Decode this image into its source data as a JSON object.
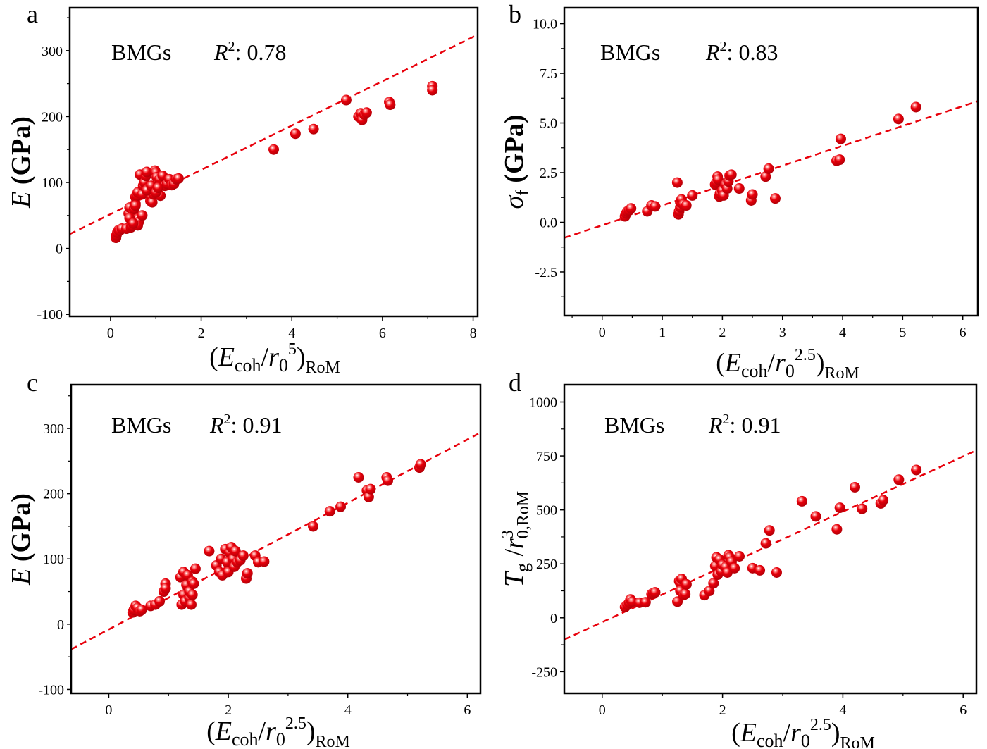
{
  "figure": {
    "marker_color": "#e8000b",
    "fit_line_color": "#e8000b"
  },
  "chart_data": [
    {
      "id": "a",
      "type": "scatter",
      "panel_letter": "a",
      "title": "",
      "annotation_group": "BMGs",
      "annotation_r2_label": "R",
      "annotation_r2_sup": "2",
      "annotation_r2_value": ": 0.78",
      "xlabel": {
        "open": "(",
        "main": "E",
        "sub1": "coh",
        "slash": "/",
        "var": "r",
        "sub2": "0",
        "sup": "5",
        "close": ")",
        "sub3": "RoM"
      },
      "ylabel": {
        "var": "E",
        "unit": "(GPa)"
      },
      "xlim": [
        -0.9,
        8.1
      ],
      "ylim": [
        -103,
        365
      ],
      "xticks": [
        0,
        2,
        4,
        6,
        8
      ],
      "xtick_labels": [
        "0",
        "2",
        "4",
        "6",
        "8"
      ],
      "yticks": [
        -100,
        0,
        100,
        200,
        300
      ],
      "ytick_labels": [
        "-100",
        "0",
        "100",
        "200",
        "300"
      ],
      "fit_line": {
        "slope": 33.6,
        "intercept": 52
      },
      "x": [
        0.12,
        0.13,
        0.15,
        0.18,
        0.2,
        0.25,
        0.35,
        0.4,
        0.42,
        0.45,
        0.47,
        0.5,
        0.5,
        0.52,
        0.55,
        0.55,
        0.58,
        0.6,
        0.6,
        0.62,
        0.65,
        0.7,
        0.72,
        0.75,
        0.78,
        0.8,
        0.82,
        0.85,
        0.88,
        0.9,
        0.92,
        0.95,
        0.98,
        1.0,
        1.02,
        1.05,
        1.08,
        1.1,
        1.15,
        1.2,
        1.25,
        1.3,
        1.35,
        1.4,
        1.45,
        1.5,
        0.6,
        0.7,
        0.8,
        0.9,
        1.0,
        1.05,
        0.42,
        0.5,
        0.55,
        3.6,
        4.08,
        4.48,
        5.2,
        5.47,
        5.52,
        5.55,
        5.6,
        5.65,
        6.15,
        6.17,
        7.1,
        7.1
      ],
      "y": [
        16,
        20,
        24,
        28,
        27,
        30,
        30,
        53,
        62,
        32,
        34,
        42,
        55,
        60,
        68,
        78,
        80,
        85,
        45,
        40,
        112,
        82,
        95,
        100,
        110,
        116,
        90,
        85,
        72,
        78,
        70,
        82,
        118,
        115,
        108,
        100,
        105,
        80,
        110,
        95,
        98,
        105,
        96,
        98,
        105,
        106,
        35,
        50,
        88,
        95,
        85,
        92,
        46,
        38,
        65,
        150,
        174,
        181,
        225,
        200,
        205,
        195,
        203,
        206,
        222,
        218,
        246,
        240
      ]
    },
    {
      "id": "b",
      "type": "scatter",
      "panel_letter": "b",
      "title": "",
      "annotation_group": "BMGs",
      "annotation_r2_label": "R",
      "annotation_r2_sup": "2",
      "annotation_r2_value": ": 0.83",
      "xlabel": {
        "open": "(",
        "main": "E",
        "sub1": "coh",
        "slash": "/",
        "var": "r",
        "sub2": "0",
        "sup": "2.5",
        "close": ")",
        "sub3": "RoM"
      },
      "ylabel": {
        "var": "σ",
        "sub": "f",
        "unit": "(GPa)"
      },
      "xlim": [
        -0.63,
        6.25
      ],
      "ylim": [
        -4.7,
        10.8
      ],
      "xticks": [
        0,
        1,
        2,
        3,
        4,
        5,
        6
      ],
      "xtick_labels": [
        "0",
        "1",
        "2",
        "3",
        "4",
        "5",
        "6"
      ],
      "yticks": [
        -2.5,
        0.0,
        2.5,
        5.0,
        7.5,
        10.0
      ],
      "ytick_labels": [
        "-2.5",
        "0.0",
        "2.5",
        "5.0",
        "7.5",
        "10.0"
      ],
      "fit_line": {
        "slope": 1.0,
        "intercept": -0.15
      },
      "x": [
        0.38,
        0.4,
        0.42,
        0.45,
        0.48,
        0.75,
        0.82,
        0.88,
        1.25,
        1.27,
        1.28,
        1.3,
        1.3,
        1.32,
        1.35,
        1.4,
        1.5,
        1.88,
        1.9,
        1.92,
        1.93,
        1.95,
        1.96,
        2.0,
        2.02,
        2.05,
        2.08,
        2.1,
        2.12,
        2.15,
        2.28,
        2.48,
        2.5,
        2.72,
        2.77,
        2.88,
        3.9,
        3.95,
        3.97,
        4.93,
        5.22
      ],
      "y": [
        0.3,
        0.45,
        0.55,
        0.6,
        0.7,
        0.55,
        0.85,
        0.8,
        2.0,
        0.4,
        0.55,
        0.75,
        1.0,
        1.15,
        0.9,
        0.85,
        1.35,
        1.9,
        2.0,
        2.3,
        2.15,
        1.3,
        1.45,
        1.6,
        1.35,
        1.9,
        1.7,
        2.05,
        2.35,
        2.4,
        1.7,
        1.1,
        1.4,
        2.3,
        2.7,
        1.2,
        3.1,
        3.15,
        4.2,
        5.2,
        5.8
      ]
    },
    {
      "id": "c",
      "type": "scatter",
      "panel_letter": "c",
      "title": "",
      "annotation_group": "BMGs",
      "annotation_r2_label": "R",
      "annotation_r2_sup": "2",
      "annotation_r2_value": ": 0.91",
      "xlabel": {
        "open": "(",
        "main": "E",
        "sub1": "coh",
        "slash": "/",
        "var": "r",
        "sub2": "0",
        "sup": "2.5",
        "close": ")",
        "sub3": "RoM"
      },
      "ylabel": {
        "var": "E",
        "unit": "(GPa)"
      },
      "xlim": [
        -0.63,
        6.22
      ],
      "ylim": [
        -106,
        367
      ],
      "xticks": [
        0,
        2,
        4,
        6
      ],
      "xtick_labels": [
        "0",
        "2",
        "4",
        "6"
      ],
      "yticks": [
        -100,
        0,
        100,
        200,
        300
      ],
      "ytick_labels": [
        "-100",
        "0",
        "100",
        "200",
        "300"
      ],
      "fit_line": {
        "slope": 48.5,
        "intercept": -8
      },
      "x": [
        0.4,
        0.42,
        0.45,
        0.48,
        0.52,
        0.55,
        0.7,
        0.78,
        0.85,
        0.92,
        0.95,
        0.95,
        1.2,
        1.22,
        1.25,
        1.25,
        1.28,
        1.3,
        1.32,
        1.35,
        1.35,
        1.38,
        1.4,
        1.4,
        1.42,
        1.45,
        1.68,
        1.8,
        1.85,
        1.88,
        1.9,
        1.95,
        1.98,
        2.0,
        2.02,
        2.05,
        2.08,
        2.1,
        2.12,
        2.15,
        2.2,
        2.25,
        2.3,
        2.32,
        2.45,
        2.5,
        2.6,
        3.42,
        3.7,
        3.88,
        4.18,
        4.32,
        4.35,
        4.38,
        4.65,
        4.67,
        5.2,
        5.22
      ],
      "y": [
        18,
        22,
        28,
        25,
        20,
        22,
        28,
        30,
        35,
        50,
        62,
        55,
        72,
        30,
        45,
        80,
        35,
        60,
        75,
        40,
        50,
        30,
        65,
        45,
        62,
        85,
        112,
        90,
        80,
        100,
        75,
        115,
        95,
        80,
        110,
        118,
        100,
        88,
        112,
        95,
        98,
        105,
        70,
        78,
        105,
        95,
        96,
        150,
        173,
        180,
        225,
        205,
        195,
        207,
        225,
        220,
        240,
        245
      ]
    },
    {
      "id": "d",
      "type": "scatter",
      "panel_letter": "d",
      "title": "",
      "annotation_group": "BMGs",
      "annotation_r2_label": "R",
      "annotation_r2_sup": "2",
      "annotation_r2_value": ": 0.91",
      "xlabel": {
        "open": "(",
        "main": "E",
        "sub1": "coh",
        "slash": "/",
        "var": "r",
        "sub2": "0",
        "sup": "2.5",
        "close": ")",
        "sub3": "RoM"
      },
      "ylabel": {
        "var": "T",
        "sub": "g",
        "slash": "/",
        "var2": "r",
        "sub2": "0,RoM",
        "sup2": "3"
      },
      "xlim": [
        -0.63,
        6.22
      ],
      "ylim": [
        -350,
        1080
      ],
      "xticks": [
        0,
        2,
        4,
        6
      ],
      "xtick_labels": [
        "0",
        "2",
        "4",
        "6"
      ],
      "yticks": [
        -250,
        0,
        250,
        500,
        750,
        1000
      ],
      "ytick_labels": [
        "-250",
        "0",
        "250",
        "500",
        "750",
        "1000"
      ],
      "fit_line": {
        "slope": 128,
        "intercept": -20
      },
      "x": [
        0.38,
        0.42,
        0.45,
        0.47,
        0.5,
        0.62,
        0.72,
        0.82,
        0.85,
        0.88,
        1.25,
        1.28,
        1.3,
        1.3,
        1.32,
        1.35,
        1.38,
        1.4,
        1.7,
        1.78,
        1.85,
        1.88,
        1.9,
        1.92,
        1.95,
        1.98,
        2.0,
        2.05,
        2.08,
        2.1,
        2.12,
        2.15,
        2.2,
        2.28,
        2.5,
        2.62,
        2.72,
        2.78,
        2.9,
        3.32,
        3.55,
        3.9,
        3.95,
        4.2,
        4.32,
        4.63,
        4.67,
        4.93,
        5.22
      ],
      "y": [
        50,
        60,
        70,
        85,
        75,
        70,
        72,
        110,
        115,
        118,
        75,
        170,
        160,
        125,
        180,
        105,
        110,
        155,
        105,
        125,
        160,
        240,
        280,
        200,
        270,
        215,
        245,
        235,
        210,
        290,
        280,
        260,
        230,
        285,
        230,
        220,
        345,
        405,
        210,
        540,
        470,
        410,
        510,
        605,
        505,
        530,
        545,
        640,
        685
      ]
    }
  ]
}
